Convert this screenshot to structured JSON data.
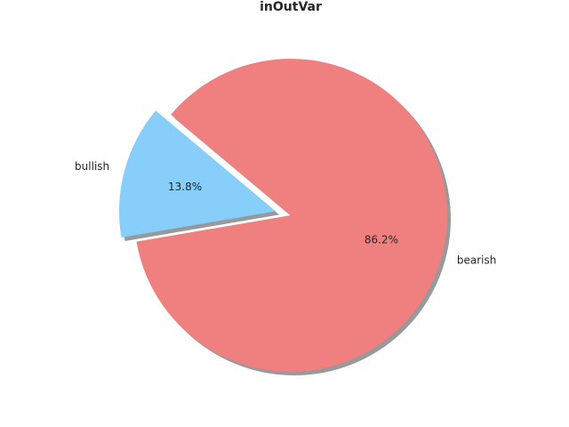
{
  "chart_data": {
    "type": "pie",
    "title": "inOutVar",
    "labels": [
      "bullish",
      "bearish"
    ],
    "values": [
      13.8,
      86.2
    ],
    "percent_labels": [
      "13.8%",
      "86.2%"
    ],
    "colors": [
      "#87cefa",
      "#f08080"
    ],
    "explode": [
      0.1,
      0
    ],
    "shadow": true,
    "start_angle_deg": 140
  }
}
